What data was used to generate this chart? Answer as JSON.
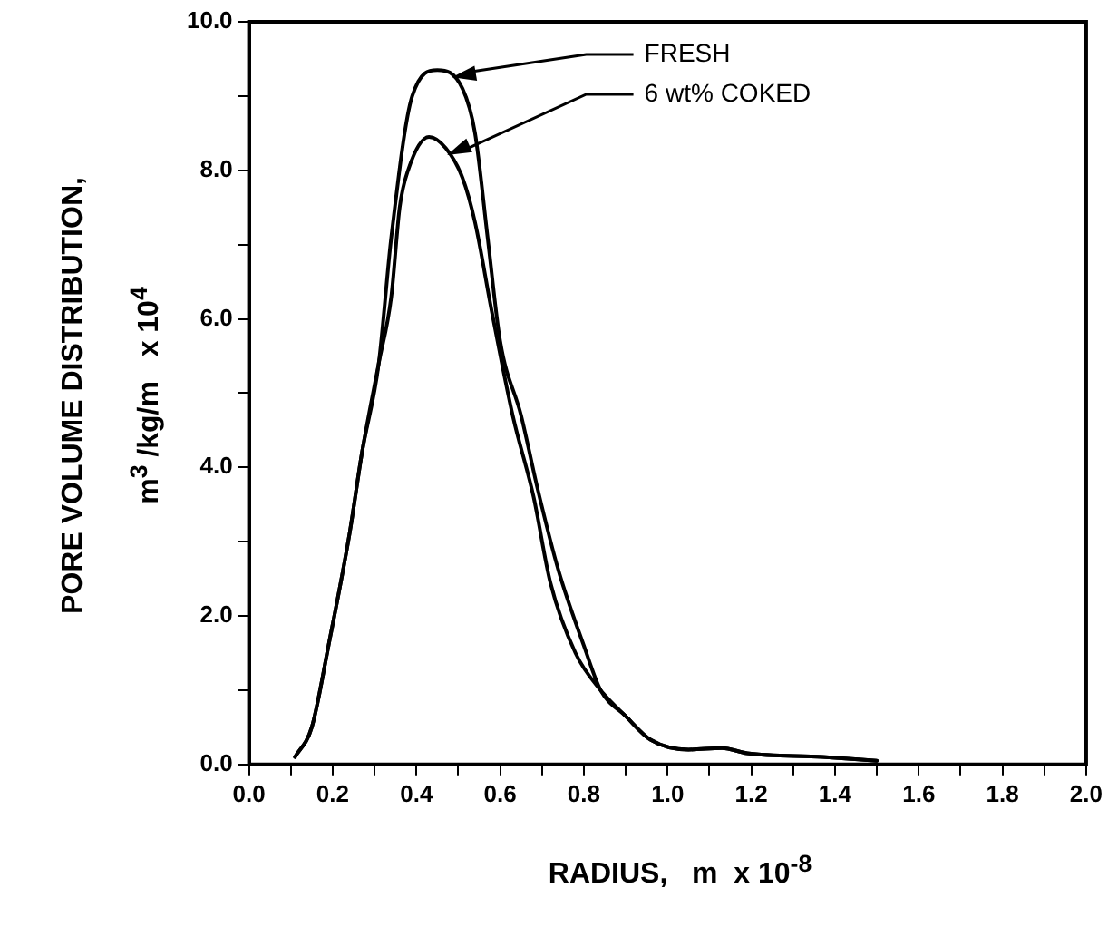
{
  "chart_data": {
    "type": "line",
    "xlabel": "RADIUS,   m  x 10$^{-8}$",
    "ylabel": "PORE VOLUME DISTRIBUTION,\nm$^{3}$ /kg/m   x 10$^{4}$",
    "xlim": [
      0,
      2
    ],
    "ylim": [
      0,
      10
    ],
    "xticks": [
      {
        "value": 0,
        "label": "0.0"
      },
      {
        "value": 0.1,
        "label": null
      },
      {
        "value": 0.2,
        "label": "0.2"
      },
      {
        "value": 0.3,
        "label": null
      },
      {
        "value": 0.4,
        "label": "0.4"
      },
      {
        "value": 0.5,
        "label": null
      },
      {
        "value": 0.6,
        "label": "0.6"
      },
      {
        "value": 0.7,
        "label": null
      },
      {
        "value": 0.8,
        "label": "0.8"
      },
      {
        "value": 0.9,
        "label": null
      },
      {
        "value": 1,
        "label": "1.0"
      },
      {
        "value": 1.1,
        "label": null
      },
      {
        "value": 1.2,
        "label": "1.2"
      },
      {
        "value": 1.3,
        "label": null
      },
      {
        "value": 1.4,
        "label": "1.4"
      },
      {
        "value": 1.5,
        "label": null
      },
      {
        "value": 1.6,
        "label": "1.6"
      },
      {
        "value": 1.7,
        "label": null
      },
      {
        "value": 1.8,
        "label": "1.8"
      },
      {
        "value": 1.9,
        "label": null
      },
      {
        "value": 2,
        "label": "2.0"
      }
    ],
    "yticks": [
      {
        "value": 0,
        "label": "0.0"
      },
      {
        "value": 1,
        "label": null
      },
      {
        "value": 2,
        "label": "2.0"
      },
      {
        "value": 3,
        "label": null
      },
      {
        "value": 4,
        "label": "4.0"
      },
      {
        "value": 5,
        "label": null
      },
      {
        "value": 6,
        "label": "6.0"
      },
      {
        "value": 7,
        "label": null
      },
      {
        "value": 8,
        "label": "8.0"
      },
      {
        "value": 9,
        "label": null
      },
      {
        "value": 10,
        "label": "10.0"
      }
    ],
    "grid": false,
    "legend": false,
    "marker": "none",
    "line_style": "solid",
    "series": [
      {
        "name": "FRESH",
        "color": "#000000",
        "x": [
          0.11,
          0.15,
          0.19,
          0.24,
          0.27,
          0.31,
          0.34,
          0.39,
          0.45,
          0.51,
          0.54,
          0.57,
          0.6,
          0.65,
          0.69,
          0.74,
          0.8,
          0.84,
          0.9,
          0.96,
          1.05,
          1.13,
          1.19,
          1.37,
          1.5
        ],
        "values": [
          0.1,
          0.5,
          1.6,
          3.1,
          4.2,
          5.4,
          7.1,
          9.0,
          9.35,
          9.1,
          8.5,
          7.1,
          5.7,
          4.7,
          3.7,
          2.6,
          1.6,
          1.0,
          0.65,
          0.33,
          0.2,
          0.22,
          0.15,
          0.1,
          0.05
        ]
      },
      {
        "name": "6 wt% COKED",
        "color": "#000000",
        "x": [
          0.11,
          0.15,
          0.19,
          0.24,
          0.27,
          0.31,
          0.34,
          0.36,
          0.38,
          0.43,
          0.47,
          0.51,
          0.54,
          0.58,
          0.63,
          0.68,
          0.72,
          0.78,
          0.84,
          0.9,
          0.96,
          1.05,
          1.13,
          1.19,
          1.37,
          1.5
        ],
        "values": [
          0.1,
          0.5,
          1.6,
          3.1,
          4.2,
          5.4,
          6.3,
          7.5,
          8.0,
          8.45,
          8.3,
          7.9,
          7.3,
          6.1,
          4.7,
          3.6,
          2.45,
          1.5,
          1.0,
          0.65,
          0.33,
          0.2,
          0.22,
          0.15,
          0.1,
          0.05
        ]
      }
    ]
  }
}
